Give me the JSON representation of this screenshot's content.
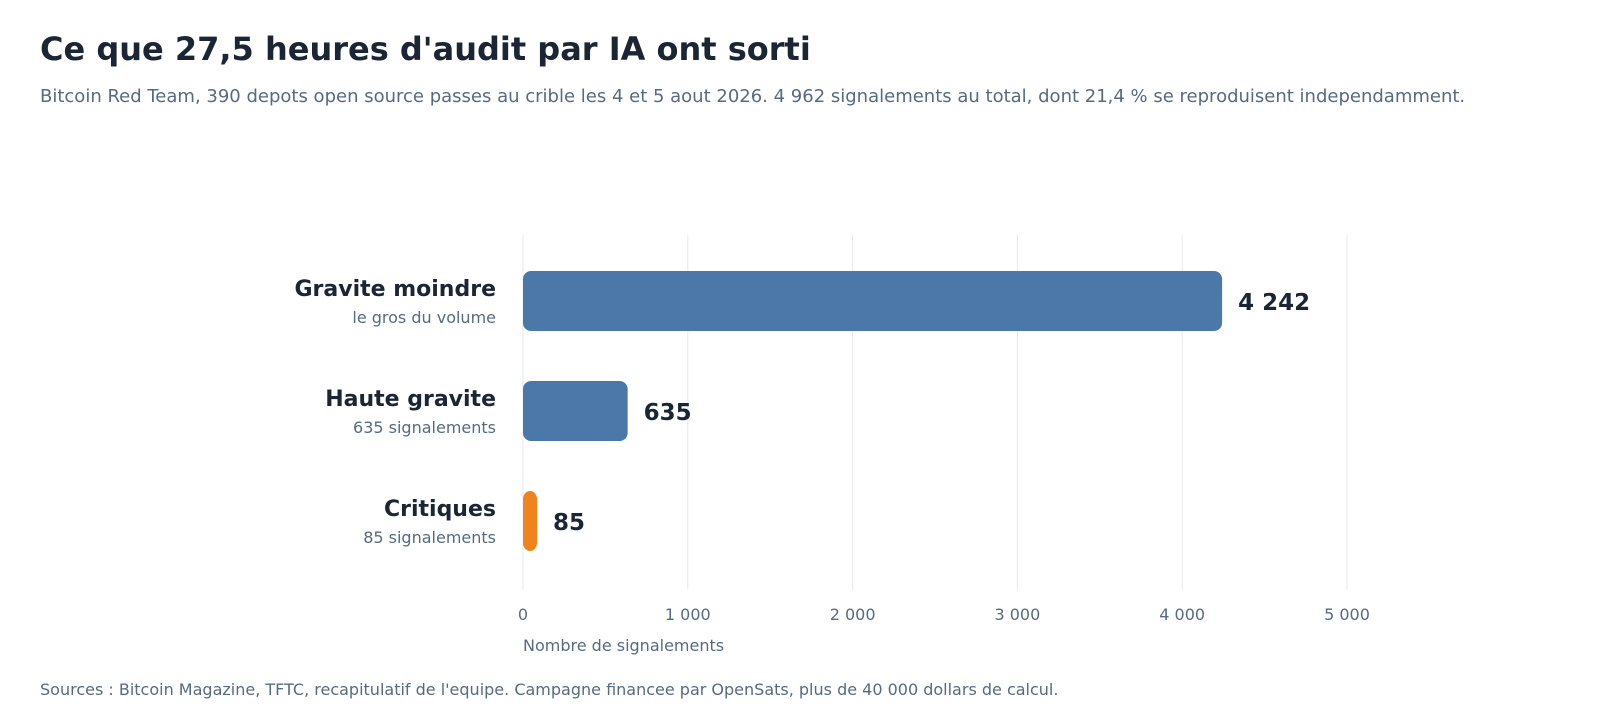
{
  "chart_data": {
    "type": "bar",
    "orientation": "horizontal",
    "title": "Ce que 27,5 heures d'audit par IA ont sorti",
    "subtitle": "Bitcoin Red Team, 390 depots open source passes au crible les 4 et 5 aout 2026. 4 962 signalements au total, dont 21,4 % se reproduisent independamment.",
    "categories": [
      "Gravite moindre",
      "Haute gravite",
      "Critiques"
    ],
    "category_sublabels": [
      "le gros du volume",
      "635 signalements",
      "85 signalements"
    ],
    "values": [
      4242,
      635,
      85
    ],
    "value_labels": [
      "4 242",
      "635",
      "85"
    ],
    "bar_colors": [
      "#4b78a8",
      "#4b78a8",
      "#f0831c"
    ],
    "xlabel": "Nombre de signalements",
    "ylabel": "",
    "xlim": [
      0,
      5000
    ],
    "x_ticks": [
      0,
      1000,
      2000,
      3000,
      4000,
      5000
    ],
    "x_tick_labels": [
      "0",
      "1 000",
      "2 000",
      "3 000",
      "4 000",
      "5 000"
    ],
    "grid": "vertical",
    "legend": "none",
    "source": "Sources : Bitcoin Magazine, TFTC, recapitulatif de l'equipe. Campagne financee par OpenSats, plus de 40 000 dollars de calcul."
  }
}
